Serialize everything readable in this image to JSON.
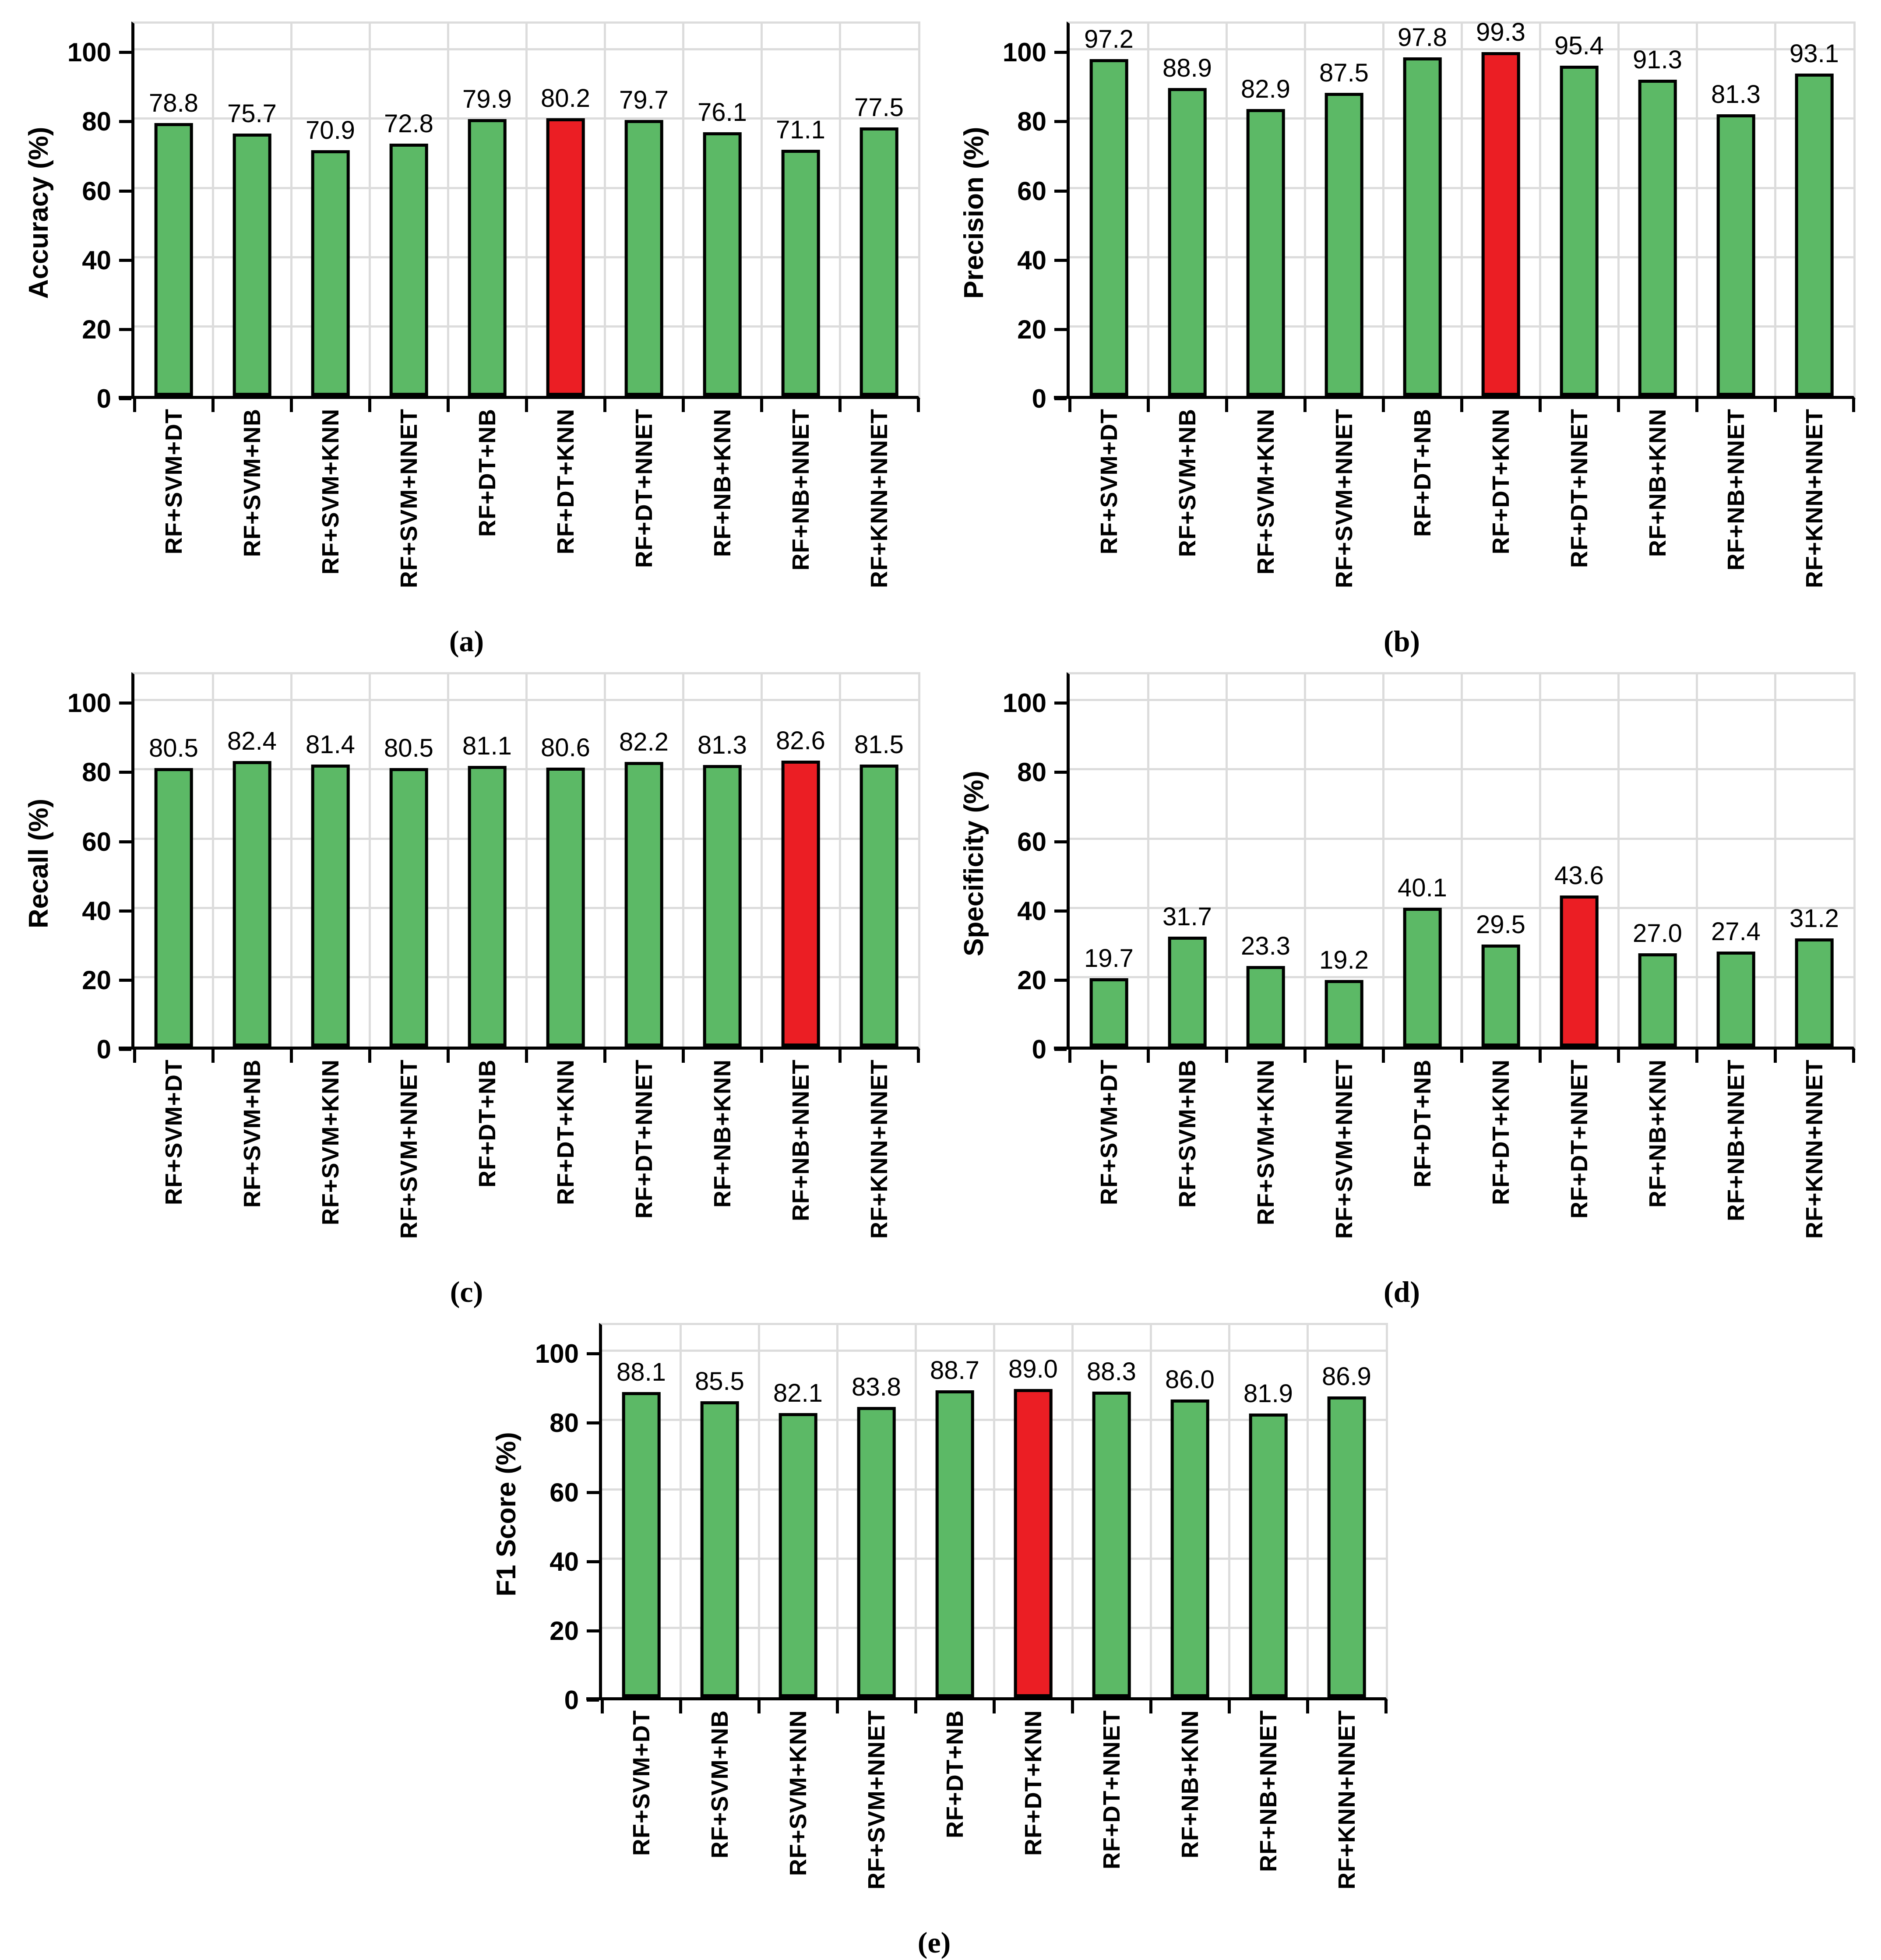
{
  "axis": {
    "yticks": [
      0,
      20,
      40,
      60,
      80,
      100
    ]
  },
  "style": {
    "bar_color": "#5CB966",
    "highlight_color": "#EB1E24",
    "grid_color": "#DCDCDC",
    "axis_color": "#000000",
    "background": "#FFFFFF"
  },
  "chart_data": [
    {
      "type": "bar",
      "panel_tag": "(a)",
      "ylabel": "Accuracy (%)",
      "xlabel": "",
      "ylim": [
        0,
        107.5
      ],
      "grid": true,
      "legend": "none",
      "categories": [
        "RF+SVM+DT",
        "RF+SVM+NB",
        "RF+SVM+KNN",
        "RF+SVM+NNET",
        "RF+DT+NB",
        "RF+DT+KNN",
        "RF+DT+NNET",
        "RF+NB+KNN",
        "RF+NB+NNET",
        "RF+KNN+NNET"
      ],
      "values": [
        78.8,
        75.7,
        70.9,
        72.8,
        79.9,
        80.2,
        79.7,
        76.1,
        71.1,
        77.5
      ],
      "value_labels": [
        "78.8",
        "75.7",
        "70.9",
        "72.8",
        "79.9",
        "80.2",
        "79.7",
        "76.1",
        "71.1",
        "77.5"
      ],
      "highlight_index": 5
    },
    {
      "type": "bar",
      "panel_tag": "(b)",
      "ylabel": "Precision (%)",
      "xlabel": "",
      "ylim": [
        0,
        107.5
      ],
      "grid": true,
      "legend": "none",
      "categories": [
        "RF+SVM+DT",
        "RF+SVM+NB",
        "RF+SVM+KNN",
        "RF+SVM+NNET",
        "RF+DT+NB",
        "RF+DT+KNN",
        "RF+DT+NNET",
        "RF+NB+KNN",
        "RF+NB+NNET",
        "RF+KNN+NNET"
      ],
      "values": [
        97.2,
        88.9,
        82.9,
        87.5,
        97.8,
        99.3,
        95.4,
        91.3,
        81.3,
        93.1
      ],
      "value_labels": [
        "97.2",
        "88.9",
        "82.9",
        "87.5",
        "97.8",
        "99.3",
        "95.4",
        "91.3",
        "81.3",
        "93.1"
      ],
      "highlight_index": 5
    },
    {
      "type": "bar",
      "panel_tag": "(c)",
      "ylabel": "Recall (%)",
      "xlabel": "",
      "ylim": [
        0,
        107.5
      ],
      "grid": true,
      "legend": "none",
      "categories": [
        "RF+SVM+DT",
        "RF+SVM+NB",
        "RF+SVM+KNN",
        "RF+SVM+NNET",
        "RF+DT+NB",
        "RF+DT+KNN",
        "RF+DT+NNET",
        "RF+NB+KNN",
        "RF+NB+NNET",
        "RF+KNN+NNET"
      ],
      "values": [
        80.5,
        82.4,
        81.4,
        80.5,
        81.1,
        80.6,
        82.2,
        81.3,
        82.6,
        81.5
      ],
      "value_labels": [
        "80.5",
        "82.4",
        "81.4",
        "80.5",
        "81.1",
        "80.6",
        "82.2",
        "81.3",
        "82.6",
        "81.5"
      ],
      "highlight_index": 8
    },
    {
      "type": "bar",
      "panel_tag": "(d)",
      "ylabel": "Specificity (%)",
      "xlabel": "",
      "ylim": [
        0,
        107.5
      ],
      "grid": true,
      "legend": "none",
      "categories": [
        "RF+SVM+DT",
        "RF+SVM+NB",
        "RF+SVM+KNN",
        "RF+SVM+NNET",
        "RF+DT+NB",
        "RF+DT+KNN",
        "RF+DT+NNET",
        "RF+NB+KNN",
        "RF+NB+NNET",
        "RF+KNN+NNET"
      ],
      "values": [
        19.7,
        31.7,
        23.3,
        19.2,
        40.1,
        29.5,
        43.6,
        27.0,
        27.4,
        31.2
      ],
      "value_labels": [
        "19.7",
        "31.7",
        "23.3",
        "19.2",
        "40.1",
        "29.5",
        "43.6",
        "27.0",
        "27.4",
        "31.2"
      ],
      "highlight_index": 6
    },
    {
      "type": "bar",
      "panel_tag": "(e)",
      "ylabel": "F1 Score (%)",
      "xlabel": "",
      "ylim": [
        0,
        107.5
      ],
      "grid": true,
      "legend": "none",
      "categories": [
        "RF+SVM+DT",
        "RF+SVM+NB",
        "RF+SVM+KNN",
        "RF+SVM+NNET",
        "RF+DT+NB",
        "RF+DT+KNN",
        "RF+DT+NNET",
        "RF+NB+KNN",
        "RF+NB+NNET",
        "RF+KNN+NNET"
      ],
      "values": [
        88.1,
        85.5,
        82.1,
        83.8,
        88.7,
        89.0,
        88.3,
        86.0,
        81.9,
        86.9
      ],
      "value_labels": [
        "88.1",
        "85.5",
        "82.1",
        "83.8",
        "88.7",
        "89.0",
        "88.3",
        "86.0",
        "81.9",
        "86.9"
      ],
      "highlight_index": 5
    }
  ]
}
